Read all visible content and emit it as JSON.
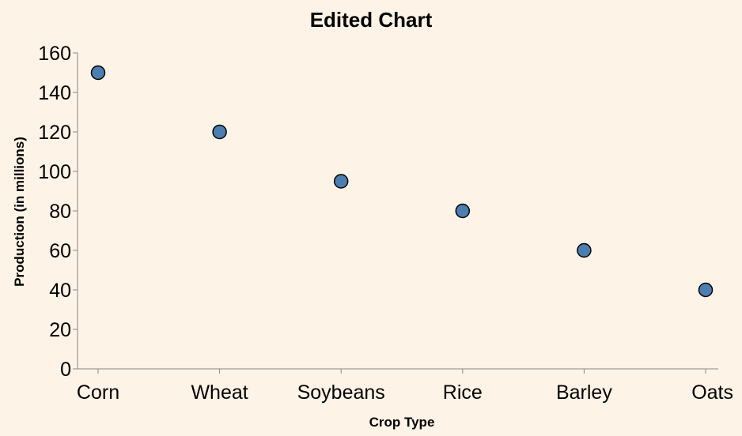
{
  "chart_data": {
    "type": "scatter",
    "title": "Edited Chart",
    "xlabel": "Crop Type",
    "ylabel": "Production (in millions)",
    "categories": [
      "Corn",
      "Wheat",
      "Soybeans",
      "Rice",
      "Barley",
      "Oats"
    ],
    "values": [
      150,
      120,
      95,
      80,
      60,
      40
    ],
    "ylim": [
      0,
      160
    ],
    "yticks": [
      0,
      20,
      40,
      60,
      80,
      100,
      120,
      140,
      160
    ],
    "grid": false,
    "point_color": "#4c7fb0",
    "background": "#fdf3e6"
  }
}
